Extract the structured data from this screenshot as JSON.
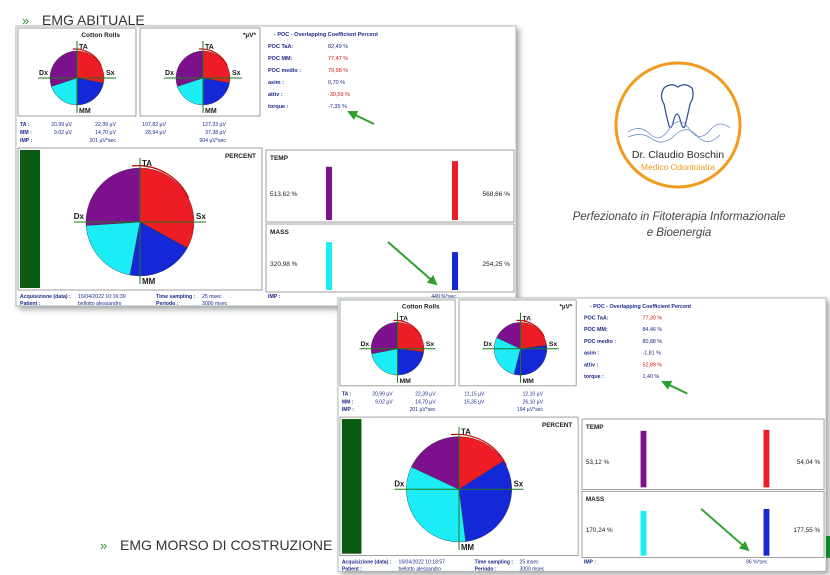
{
  "headings": {
    "habitual": "EMG ABITUALE",
    "construction": "EMG MORSO DI COSTRUZIONE",
    "bullet": "»"
  },
  "logo": {
    "name": "Dr. Claudio Boschin",
    "role": "Medico Odontoiatra",
    "accent": "#f39a1e"
  },
  "tagline": {
    "line1": "Perfezionato in Fitoterapia Informazionale",
    "line2": "e Bioenergia"
  },
  "colors": {
    "TA": "#ee1c24",
    "Sx": "#1528d8",
    "MM": "#1cecf5",
    "Dx": "#7d118d",
    "accent_bar": "#0b5a12",
    "arrow": "#2ca02c",
    "title": "#1b2a8a",
    "red_text": "#d01515"
  },
  "reports": [
    {
      "id": "habitual",
      "pie_labels": {
        "top": "TA",
        "right": "Sx",
        "bottom": "MM",
        "left": "Dx"
      },
      "panel1_title": "Cotton Rolls",
      "panel2_title": "*µV*",
      "poc_title": "- POC - Overlapping Coefficient Percent",
      "poc": [
        {
          "label": "POC TaA:",
          "value": "82,49 %",
          "red": false
        },
        {
          "label": "POC MM:",
          "value": "77,47 %",
          "red": true
        },
        {
          "label": "POC medio :",
          "value": "79,98 %",
          "red": true
        },
        {
          "label": "asim :",
          "value": "0,70 %",
          "red": false
        },
        {
          "label": "attiv :",
          "value": "-30,59 %",
          "red": true
        },
        {
          "label": "torque :",
          "value": "-7,35 %",
          "red": false
        }
      ],
      "values_rows": [
        {
          "label": "TA :",
          "c1": "20,99 µV",
          "c2": "22,39 µV",
          "c3": "107,82 µV",
          "c4": "127,33 µV"
        },
        {
          "label": "MM :",
          "c1": "9,02 µV",
          "c2": "14,70 µV",
          "c3": "28,94 µV",
          "c4": "37,38 µV"
        }
      ],
      "imp_label": "IMP :",
      "imp1": "201 µV*sec",
      "imp2": "904 µV*sec",
      "percent_title": "PERCENT",
      "temp_label": "TEMP",
      "mass_label": "MASS",
      "temp_left": "513,62 %",
      "temp_right": "568,66 %",
      "mass_left": "320,98 %",
      "mass_right": "254,25 %",
      "imp_bottom": "449 %*sec",
      "footer": {
        "acq_label": "Acquisizione (data) :",
        "acq_value": "16/04/2022 10:16:39",
        "patient_label": "Patient :",
        "patient_value": "bellotto alessandro",
        "ts_label": "Time sampling :",
        "ts_value": "25 msec",
        "period_label": "Periodo :",
        "period_value": "3000 msec"
      }
    },
    {
      "id": "construction",
      "pie_labels": {
        "top": "TA",
        "right": "Sx",
        "bottom": "MM",
        "left": "Dx"
      },
      "panel1_title": "Cotton Rolls",
      "panel2_title": "*µV*",
      "poc_title": "- POC - Overlapping Coefficient Percent",
      "poc": [
        {
          "label": "POC TaA:",
          "value": "77,30 %",
          "red": true
        },
        {
          "label": "POC MM:",
          "value": "84,46 %",
          "red": false
        },
        {
          "label": "POC medio :",
          "value": "80,88 %",
          "red": false
        },
        {
          "label": "asim :",
          "value": "-1,81 %",
          "red": false
        },
        {
          "label": "attiv :",
          "value": "52,89 %",
          "red": true
        },
        {
          "label": "torque :",
          "value": "1,40 %",
          "red": false
        }
      ],
      "values_rows": [
        {
          "label": "TA :",
          "c1": "20,99 µV",
          "c2": "22,39 µV",
          "c3": "11,15 µV",
          "c4": "12,10 µV"
        },
        {
          "label": "MM :",
          "c1": "9,02 µV",
          "c2": "14,70 µV",
          "c3": "15,35 µV",
          "c4": "26,10 µV"
        }
      ],
      "imp_label": "IMP :",
      "imp1": "201 µV*sec",
      "imp2": "194 µV*sec",
      "percent_title": "PERCENT",
      "temp_label": "TEMP",
      "mass_label": "MASS",
      "temp_left": "53,12 %",
      "temp_right": "54,04 %",
      "mass_left": "170,24 %",
      "mass_right": "177,55 %",
      "imp_bottom": "96 %*sec",
      "footer": {
        "acq_label": "Acquisizione (data) :",
        "acq_value": "16/04/2022 10:18:57",
        "patient_label": "Patient :",
        "patient_value": "bellotto alessandro",
        "ts_label": "Time sampling :",
        "ts_value": "25 msec",
        "period_label": "Periodo :",
        "period_value": "3000 msec"
      }
    }
  ],
  "chart_data": [
    {
      "type": "pie",
      "report": "habitual",
      "panel": "cotton-rolls",
      "slices": [
        {
          "name": "TA",
          "value": 28
        },
        {
          "name": "Sx",
          "value": 22
        },
        {
          "name": "MM",
          "value": 20
        },
        {
          "name": "Dx",
          "value": 30
        }
      ]
    },
    {
      "type": "pie",
      "report": "habitual",
      "panel": "uV",
      "slices": [
        {
          "name": "TA",
          "value": 28
        },
        {
          "name": "Sx",
          "value": 22
        },
        {
          "name": "MM",
          "value": 20
        },
        {
          "name": "Dx",
          "value": 30
        }
      ]
    },
    {
      "type": "pie",
      "report": "habitual",
      "panel": "percent",
      "slices": [
        {
          "name": "TA",
          "value": 33
        },
        {
          "name": "Sx",
          "value": 20
        },
        {
          "name": "MM",
          "value": 21
        },
        {
          "name": "Dx",
          "value": 26
        }
      ]
    },
    {
      "type": "bar",
      "report": "habitual",
      "panel": "temp",
      "categories": [
        "left",
        "right"
      ],
      "values": [
        513.62,
        568.66
      ]
    },
    {
      "type": "bar",
      "report": "habitual",
      "panel": "mass",
      "categories": [
        "left",
        "right"
      ],
      "values": [
        320.98,
        254.25
      ]
    },
    {
      "type": "pie",
      "report": "construction",
      "panel": "cotton-rolls",
      "slices": [
        {
          "name": "TA",
          "value": 27
        },
        {
          "name": "Sx",
          "value": 23
        },
        {
          "name": "MM",
          "value": 22
        },
        {
          "name": "Dx",
          "value": 28
        }
      ]
    },
    {
      "type": "pie",
      "report": "construction",
      "panel": "uV",
      "slices": [
        {
          "name": "TA",
          "value": 23
        },
        {
          "name": "Sx",
          "value": 31
        },
        {
          "name": "MM",
          "value": 28
        },
        {
          "name": "Dx",
          "value": 18
        }
      ]
    },
    {
      "type": "pie",
      "report": "construction",
      "panel": "percent",
      "slices": [
        {
          "name": "TA",
          "value": 16
        },
        {
          "name": "Sx",
          "value": 32
        },
        {
          "name": "MM",
          "value": 34
        },
        {
          "name": "Dx",
          "value": 18
        }
      ]
    },
    {
      "type": "bar",
      "report": "construction",
      "panel": "temp",
      "categories": [
        "left",
        "right"
      ],
      "values": [
        53.12,
        54.04
      ]
    },
    {
      "type": "bar",
      "report": "construction",
      "panel": "mass",
      "categories": [
        "left",
        "right"
      ],
      "values": [
        170.24,
        177.55
      ]
    }
  ]
}
